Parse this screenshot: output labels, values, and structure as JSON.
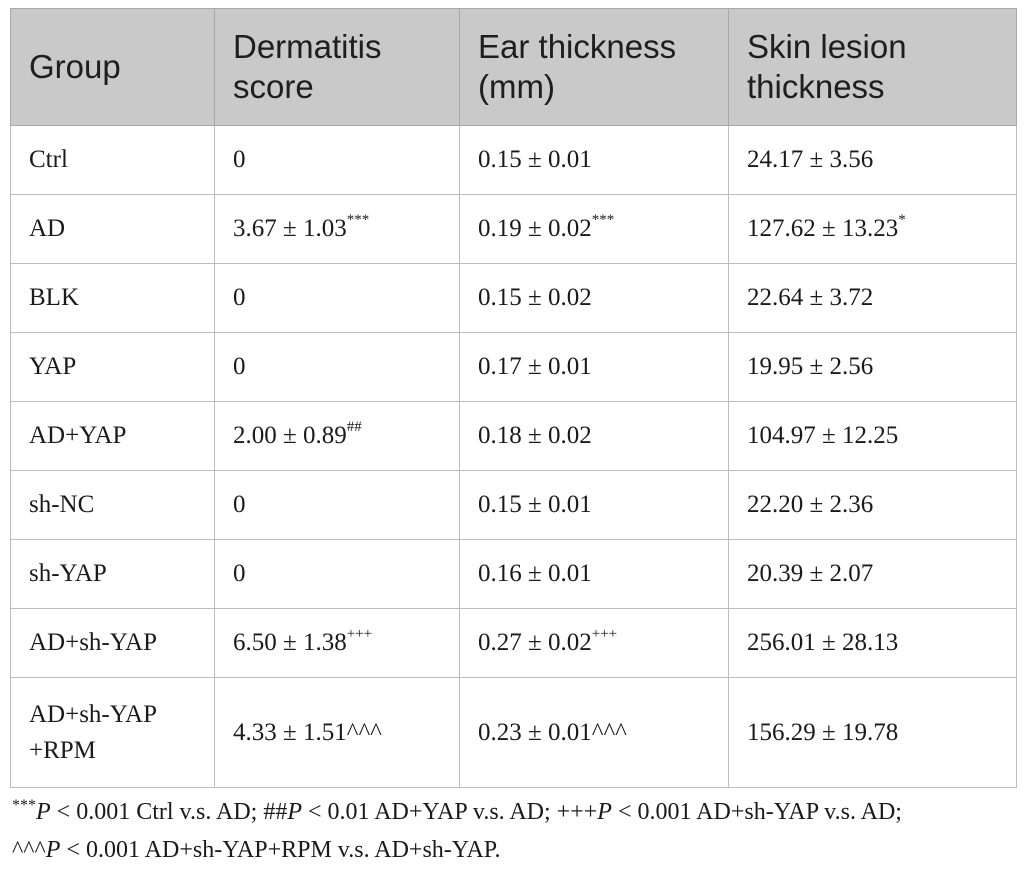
{
  "table": {
    "headers": [
      "Group",
      "Dermatitis score",
      "Ear thickness (mm)",
      "Skin lesion thickness"
    ],
    "rows": [
      {
        "group": "Ctrl",
        "dermatitis": "0",
        "dermatitis_sup": "",
        "ear": "0.15 ± 0.01",
        "ear_sup": "",
        "skin": "24.17 ± 3.56",
        "skin_sup": ""
      },
      {
        "group": "AD",
        "dermatitis": "3.67 ± 1.03",
        "dermatitis_sup": "***",
        "ear": "0.19 ± 0.02",
        "ear_sup": "***",
        "skin": "127.62 ± 13.23",
        "skin_sup": "*"
      },
      {
        "group": "BLK",
        "dermatitis": "0",
        "dermatitis_sup": "",
        "ear": "0.15 ± 0.02",
        "ear_sup": "",
        "skin": "22.64 ± 3.72",
        "skin_sup": ""
      },
      {
        "group": "YAP",
        "dermatitis": "0",
        "dermatitis_sup": "",
        "ear": "0.17 ± 0.01",
        "ear_sup": "",
        "skin": "19.95 ± 2.56",
        "skin_sup": ""
      },
      {
        "group": "AD+YAP",
        "dermatitis": "2.00 ± 0.89",
        "dermatitis_sup": "##",
        "ear": "0.18 ± 0.02",
        "ear_sup": "",
        "skin": "104.97 ± 12.25",
        "skin_sup": ""
      },
      {
        "group": "sh-NC",
        "dermatitis": "0",
        "dermatitis_sup": "",
        "ear": "0.15 ± 0.01",
        "ear_sup": "",
        "skin": "22.20 ± 2.36",
        "skin_sup": ""
      },
      {
        "group": "sh-YAP",
        "dermatitis": "0",
        "dermatitis_sup": "",
        "ear": "0.16 ± 0.01",
        "ear_sup": "",
        "skin": "20.39 ± 2.07",
        "skin_sup": ""
      },
      {
        "group": "AD+sh-YAP",
        "dermatitis": "6.50 ± 1.38",
        "dermatitis_sup": "+++",
        "ear": "0.27 ± 0.02",
        "ear_sup": "+++",
        "skin": "256.01 ± 28.13",
        "skin_sup": ""
      },
      {
        "group": "AD+sh-YAP +RPM",
        "dermatitis": "4.33 ± 1.51^^^",
        "dermatitis_sup": "",
        "ear": "0.23 ± 0.01^^^",
        "ear_sup": "",
        "skin": "156.29 ± 19.78",
        "skin_sup": ""
      }
    ]
  },
  "footnote": {
    "p1_mark": "***",
    "p1_p": "P",
    "p1_text": " < 0.001 Ctrl v.s. AD; ##",
    "p2_p": "P",
    "p2_text": " < 0.01 AD+YAP v.s. AD; +++",
    "p3_p": "P",
    "p3_text": " < 0.001 AD+sh-YAP v.s. AD;",
    "p4_mark": "^^^",
    "p4_p": "P",
    "p4_text": " < 0.001 AD+sh-YAP+RPM v.s. AD+sh-YAP."
  }
}
